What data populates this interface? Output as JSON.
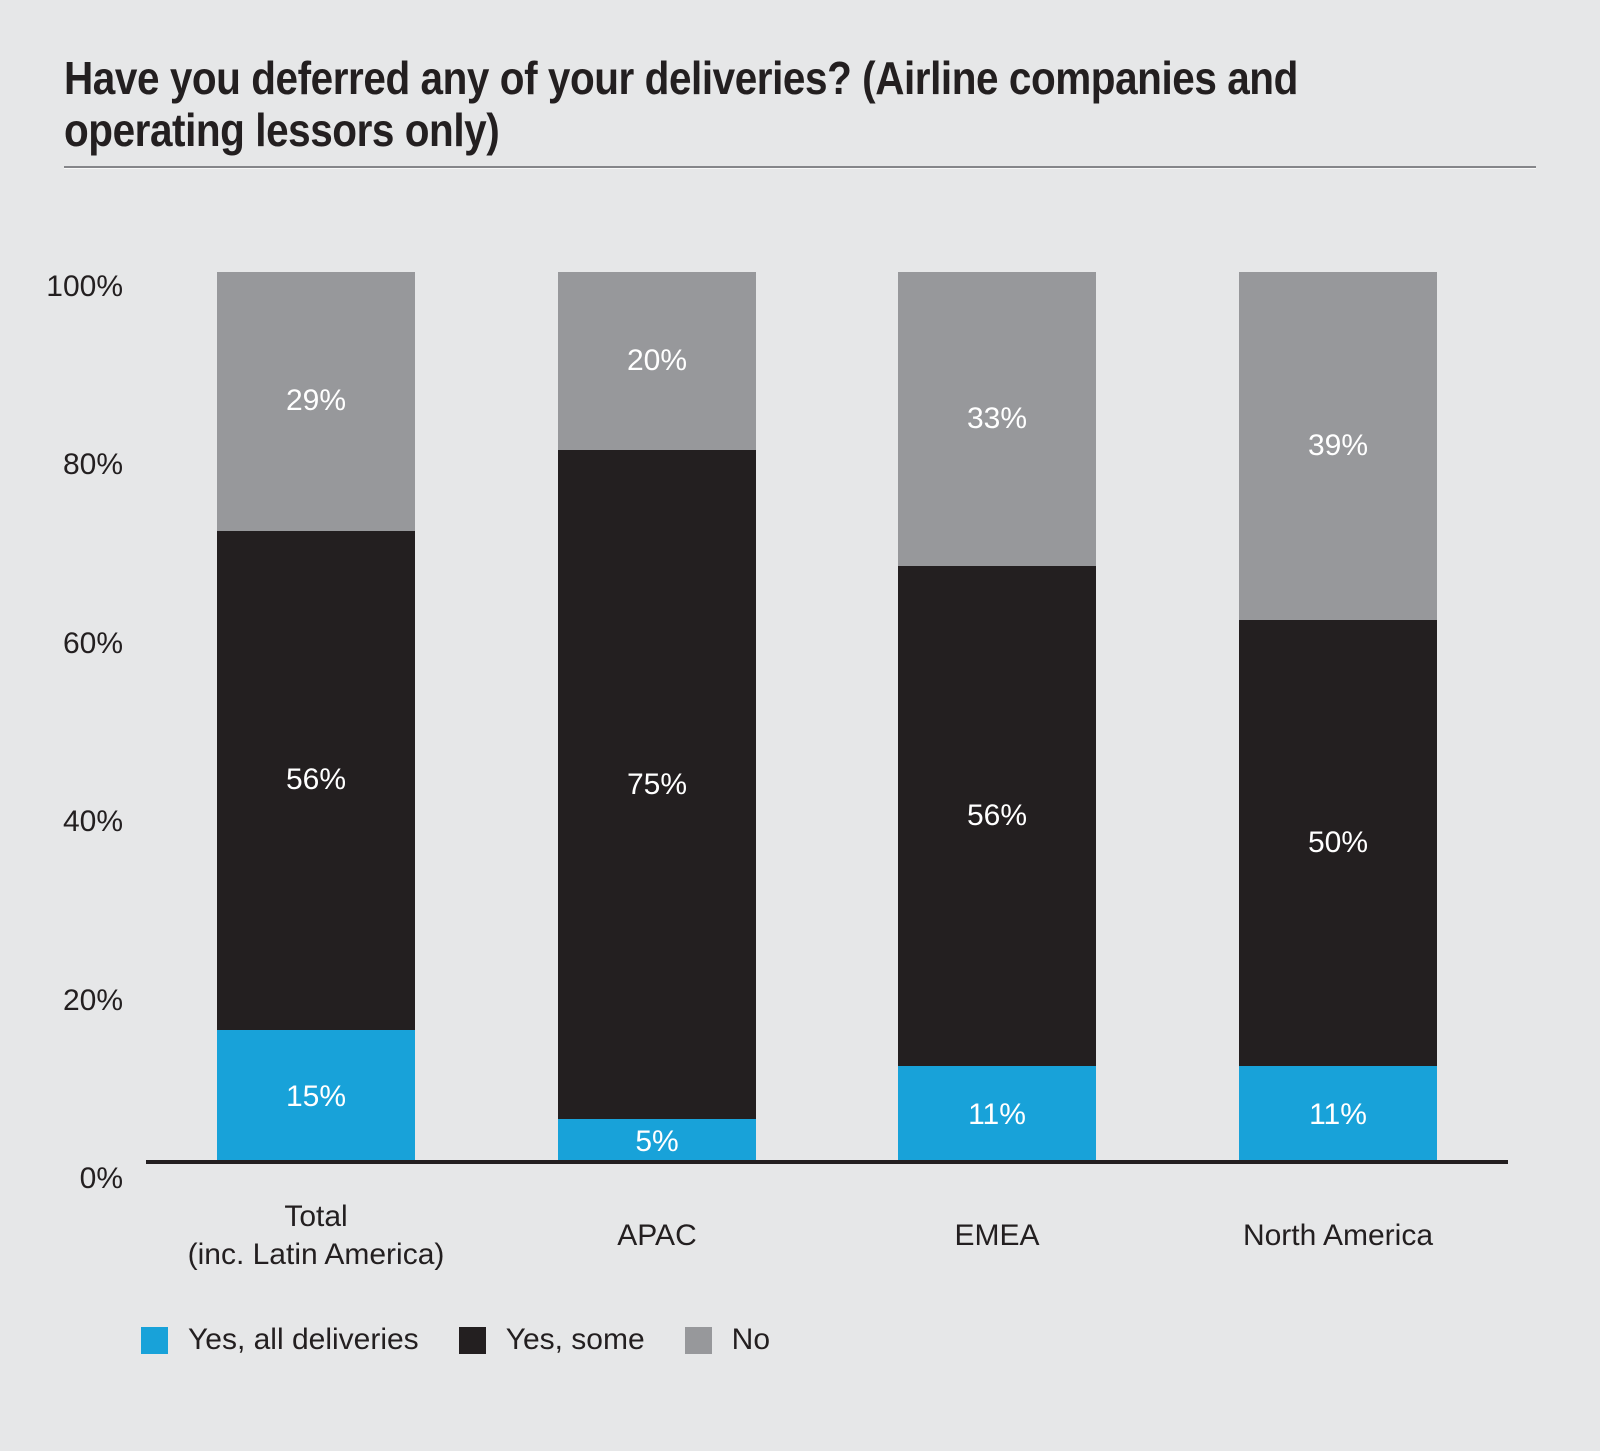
{
  "title": {
    "line1": "Have you deferred any of your deliveries? (Airline companies and",
    "line2": "operating lessors only)",
    "full": "Have you deferred any of your deliveries? (Airline companies and operating lessors only)"
  },
  "chart_data": {
    "type": "bar",
    "stacked": true,
    "title": "Have you deferred any of your deliveries? (Airline companies and operating lessors only)",
    "categories": [
      "Total (inc. Latin America)",
      "APAC",
      "EMEA",
      "North America"
    ],
    "category_label_lines": [
      [
        "Total",
        "(inc. Latin America)"
      ],
      [
        "APAC"
      ],
      [
        "EMEA"
      ],
      [
        "North America"
      ]
    ],
    "series": [
      {
        "name": "Yes, all deliveries",
        "color": "#18a2d9",
        "values": [
          15,
          5,
          11,
          11
        ]
      },
      {
        "name": "Yes, some",
        "color": "#231f20",
        "values": [
          56,
          75,
          56,
          50
        ]
      },
      {
        "name": "No",
        "color": "#97989b",
        "values": [
          29,
          20,
          33,
          39
        ]
      }
    ],
    "value_label_suffix": "%",
    "y_ticks": [
      0,
      20,
      40,
      60,
      80,
      100
    ],
    "y_tick_labels": [
      "0%",
      "20%",
      "40%",
      "60%",
      "80%",
      "100%"
    ],
    "ylim": [
      0,
      100
    ],
    "grid": false,
    "legend_position": "bottom",
    "colors": {
      "background": "#e6e7e8",
      "text": "#231f20",
      "value_label": "#ffffff",
      "axis_line": "#231f20",
      "title_rule": "#85868a"
    }
  }
}
